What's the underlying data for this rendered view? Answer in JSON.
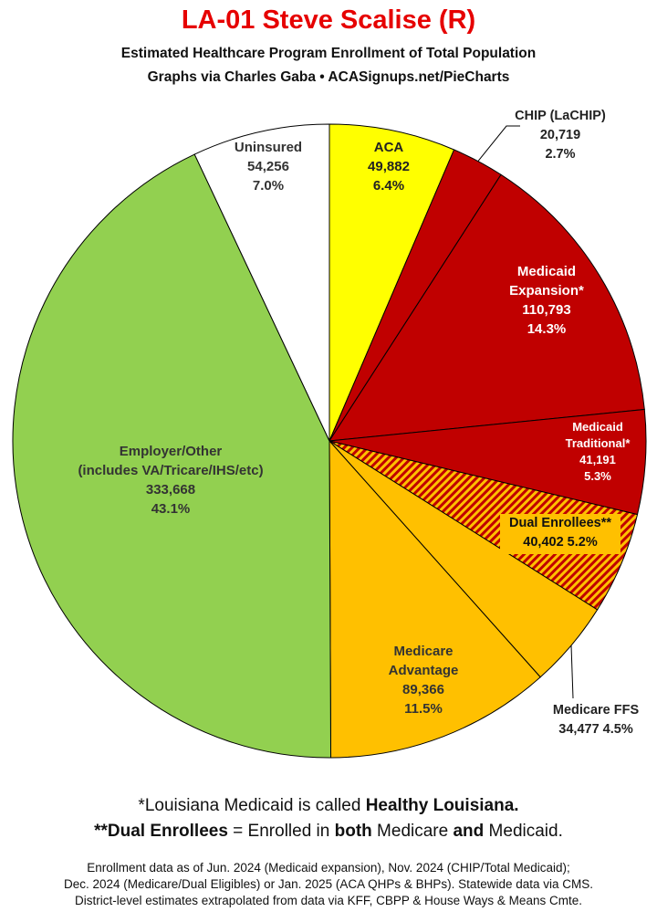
{
  "header": {
    "title": "LA-01 Steve Scalise (R)",
    "subtitle1": "Estimated Healthcare Program Enrollment of Total Population",
    "subtitle2": "Graphs via Charles Gaba  •  ACASignups.net/PieCharts"
  },
  "chart_data": {
    "type": "pie",
    "title": "LA-01 Steve Scalise (R)",
    "start": "12 o'clock",
    "direction": "clockwise",
    "slices": [
      {
        "label": "ACA",
        "value": 49882,
        "value_text": "49,882",
        "pct": 6.4,
        "pct_text": "6.4%",
        "color": "#ffff00",
        "pattern": "solid",
        "label_color": "#222222"
      },
      {
        "label": "CHIP (LaCHIP)",
        "value": 20719,
        "value_text": "20,719",
        "pct": 2.7,
        "pct_text": "2.7%",
        "color": "#c00000",
        "pattern": "solid",
        "label_color": "#222222"
      },
      {
        "label": "Medicaid Expansion*",
        "value": 110793,
        "value_text": "110,793",
        "pct": 14.3,
        "pct_text": "14.3%",
        "color": "#c00000",
        "pattern": "solid",
        "label_color": "#ffffff"
      },
      {
        "label": "Medicaid Traditional*",
        "value": 41191,
        "value_text": "41,191",
        "pct": 5.3,
        "pct_text": "5.3%",
        "color": "#c00000",
        "pattern": "solid",
        "label_color": "#ffffff"
      },
      {
        "label": "Dual Enrollees**",
        "value": 40402,
        "value_text": "40,402 5.2%",
        "pct": 5.2,
        "pct_text": "5.2%",
        "color": "#ffc000",
        "pattern": "hatched",
        "label_color": "#111111"
      },
      {
        "label": "Medicare FFS",
        "value": 34477,
        "value_text": "34,477 4.5%",
        "pct": 4.5,
        "pct_text": "4.5%",
        "color": "#ffc000",
        "pattern": "solid",
        "label_color": "#222222"
      },
      {
        "label": "Medicare Advantage",
        "value": 89366,
        "value_text": "89,366",
        "pct": 11.5,
        "pct_text": "11.5%",
        "color": "#ffc000",
        "pattern": "solid",
        "label_color": "#333333"
      },
      {
        "label": "Employer/Other (includes VA/Tricare/IHS/etc)",
        "value": 333668,
        "value_text": "333,668",
        "pct": 43.1,
        "pct_text": "43.1%",
        "color": "#92d050",
        "pattern": "solid",
        "label_color": "#333333"
      },
      {
        "label": "Uninsured",
        "value": 54256,
        "value_text": "54,256",
        "pct": 7.0,
        "pct_text": "7.0%",
        "color": "#ffffff",
        "pattern": "solid",
        "label_color": "#333333"
      }
    ],
    "label_lines": [
      [
        "ACA",
        "49,882",
        "6.4%"
      ],
      [
        "CHIP (LaCHIP)",
        "20,719",
        "2.7%"
      ],
      [
        "Medicaid",
        "Expansion*",
        "110,793",
        "14.3%"
      ],
      [
        "Medicaid",
        "Traditional*",
        "41,191",
        "5.3%"
      ],
      [
        "Dual Enrollees**",
        "40,402 5.2%"
      ],
      [
        "Medicare FFS",
        "34,477 4.5%"
      ],
      [
        "Medicare",
        "Advantage",
        "89,366",
        "11.5%"
      ],
      [
        "Employer/Other",
        "(includes VA/Tricare/IHS/etc)",
        "333,668",
        "43.1%"
      ],
      [
        "Uninsured",
        "54,256",
        "7.0%"
      ]
    ]
  },
  "footnotes": {
    "line1_pre": "*Louisiana Medicaid is called ",
    "line1_bold": "Healthy Louisiana.",
    "line2_bold1": "**Dual Enrollees",
    "line2_mid1": " = Enrolled in ",
    "line2_bold2": "both",
    "line2_mid2": " Medicare ",
    "line2_bold3": "and",
    "line2_end": " Medicaid."
  },
  "source": {
    "line1": "Enrollment data as of Jun. 2024 (Medicaid expansion), Nov. 2024 (CHIP/Total Medicaid);",
    "line2": "Dec. 2024 (Medicare/Dual Eligibles) or Jan. 2025 (ACA QHPs & BHPs). Statewide data via CMS.",
    "line3": "District-level estimates extrapolated from data via KFF, CBPP & House Ways & Means Cmte."
  }
}
